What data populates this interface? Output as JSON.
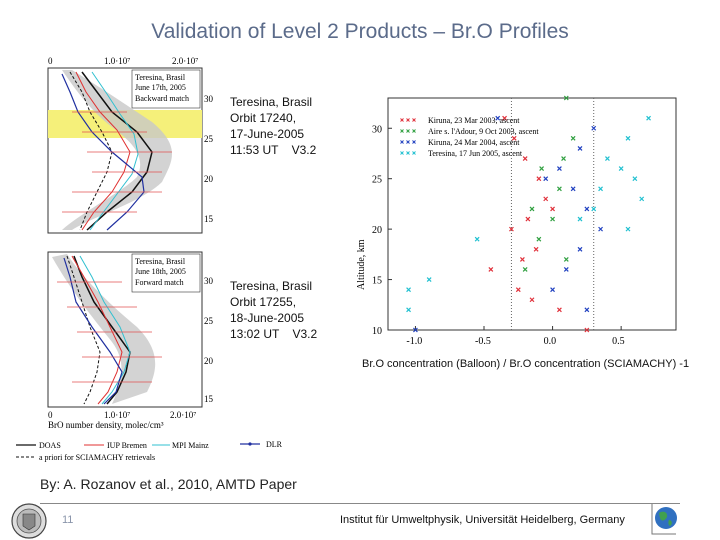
{
  "title": "Validation of Level 2 Products – Br.O  Profiles",
  "left_figure": {
    "top_ticks": [
      "0",
      "1.0·10⁷",
      "2.0·10⁷"
    ],
    "bottom_ticks": [
      "0",
      "1.0·10⁷",
      "2.0·10⁷"
    ],
    "panel1": {
      "label_line1": "Teresina, Brasil",
      "label_line2": "June 17th, 2005",
      "label_line3": "Backward match",
      "alt_ticks": [
        "30",
        "25",
        "20",
        "15"
      ]
    },
    "panel2": {
      "label_line1": "Teresina, Brasil",
      "label_line2": "June 18th, 2005",
      "label_line3": "Forward match",
      "alt_ticks": [
        "30",
        "25",
        "20",
        "15"
      ]
    },
    "xlabel": "BrO number density, molec/cm³",
    "legend": {
      "doas": "DOAS",
      "iup": "IUP Bremen",
      "mpi": "MPI Mainz",
      "dlr": "DLR",
      "apriori": "a priori for SCIAMACHY retrievals"
    }
  },
  "panel_info_1": "Teresina, Brasil\nOrbit 17240,\n17-June-2005\n11:53 UT    V3.2",
  "panel_info_2": "Teresina, Brasil\nOrbit 17255,\n18-June-2005\n13:02 UT    V3.2",
  "chart_data": {
    "type": "scatter",
    "xlabel": "",
    "ylabel": "Altitude, km",
    "xlim": [
      -1.2,
      0.9
    ],
    "ylim": [
      10,
      33
    ],
    "x_ticks": [
      "-1.0",
      "-0.5",
      "0.0",
      "0.5"
    ],
    "y_ticks": [
      "30",
      "25",
      "20",
      "15",
      "10"
    ],
    "vlines": [
      -0.3,
      0.3
    ],
    "legend_position": "top-right",
    "series": [
      {
        "name": "Kiruna, 23 Mar 2003, ascent",
        "color": "#e0303a",
        "points": [
          [
            -0.35,
            31
          ],
          [
            -0.28,
            29
          ],
          [
            -0.2,
            27
          ],
          [
            -0.1,
            25
          ],
          [
            -0.05,
            23
          ],
          [
            0.0,
            22
          ],
          [
            -0.18,
            21
          ],
          [
            -0.3,
            20
          ],
          [
            -0.12,
            18
          ],
          [
            -0.22,
            17
          ],
          [
            -0.45,
            16
          ],
          [
            -0.25,
            14
          ],
          [
            -0.15,
            13
          ],
          [
            0.05,
            12
          ],
          [
            0.25,
            10
          ]
        ]
      },
      {
        "name": "Aire s. l'Adour, 9 Oct 2003, ascent",
        "color": "#30a040",
        "points": [
          [
            0.1,
            33
          ],
          [
            0.15,
            29
          ],
          [
            0.08,
            27
          ],
          [
            -0.08,
            26
          ],
          [
            0.05,
            24
          ],
          [
            -0.15,
            22
          ],
          [
            0.0,
            21
          ],
          [
            -0.1,
            19
          ],
          [
            0.1,
            17
          ],
          [
            -0.2,
            16
          ]
        ]
      },
      {
        "name": "Kiruna, 24 Mar 2004, ascent",
        "color": "#2040c0",
        "points": [
          [
            -0.4,
            31
          ],
          [
            0.3,
            30
          ],
          [
            0.2,
            28
          ],
          [
            0.05,
            26
          ],
          [
            -0.05,
            25
          ],
          [
            0.15,
            24
          ],
          [
            0.25,
            22
          ],
          [
            0.35,
            20
          ],
          [
            0.2,
            18
          ],
          [
            0.1,
            16
          ],
          [
            0.0,
            14
          ],
          [
            0.25,
            12
          ],
          [
            -1.0,
            10
          ]
        ]
      },
      {
        "name": "Teresina, 17 Jun 2005, ascent",
        "color": "#20c0d0",
        "points": [
          [
            0.7,
            31
          ],
          [
            0.55,
            29
          ],
          [
            0.4,
            27
          ],
          [
            0.5,
            26
          ],
          [
            0.6,
            25
          ],
          [
            0.35,
            24
          ],
          [
            0.65,
            23
          ],
          [
            0.3,
            22
          ],
          [
            0.2,
            21
          ],
          [
            0.55,
            20
          ],
          [
            -0.55,
            19
          ],
          [
            -0.9,
            15
          ],
          [
            -1.05,
            14
          ],
          [
            -1.05,
            12
          ]
        ]
      }
    ]
  },
  "caption": "Br.O concentration (Balloon) / Br.O concentration (SCIAMACHY) -1",
  "credit": "By: A. Rozanov et al., 2010, AMTD Paper",
  "page_number": "11",
  "institute": "Institut für Umweltphysik, Universität Heidelberg, Germany"
}
